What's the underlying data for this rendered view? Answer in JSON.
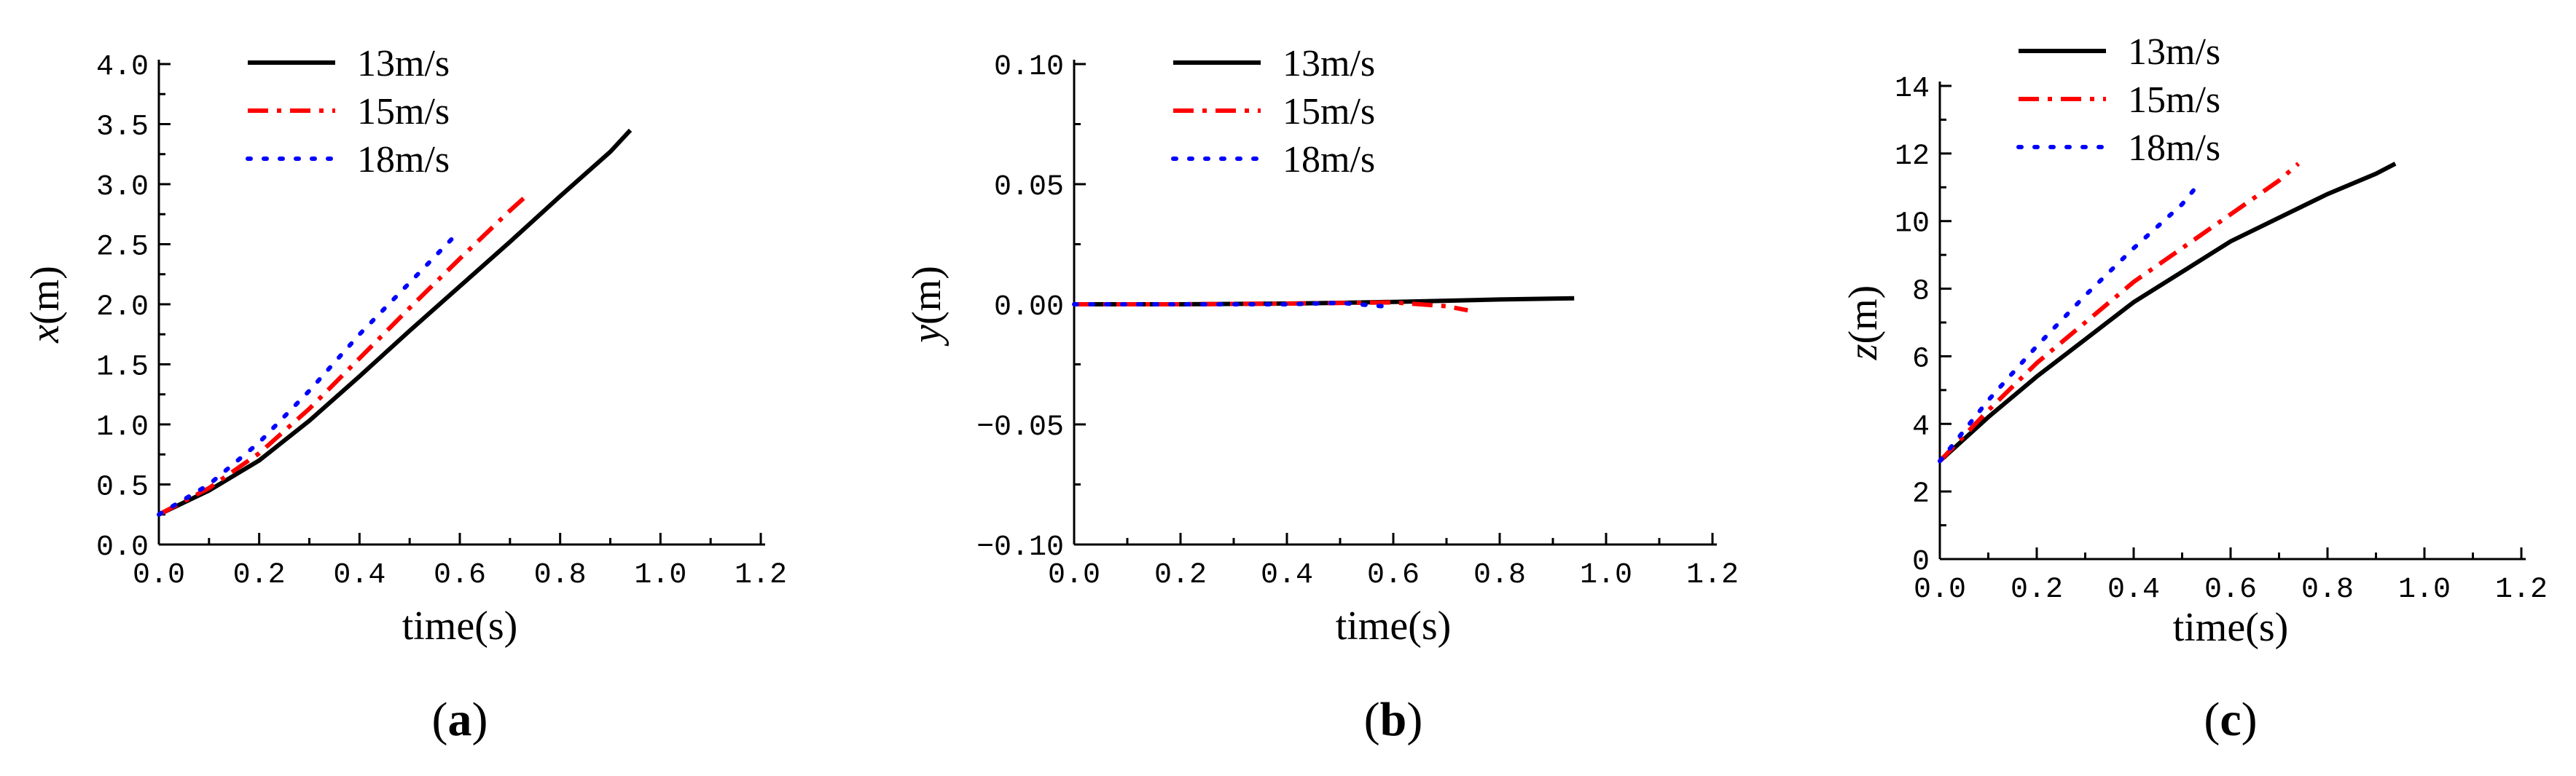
{
  "chart_data": [
    {
      "type": "line",
      "panel_label_open": "(",
      "panel_label": "a",
      "panel_label_close": ")",
      "xlabel": "time(s)",
      "ylabel_var": "x",
      "ylabel_unit": "(m)",
      "xlim": [
        0,
        1.2
      ],
      "ylim": [
        0,
        4.0
      ],
      "xticks": [
        0.0,
        0.2,
        0.4,
        0.6,
        0.8,
        1.0,
        1.2
      ],
      "xtick_labels": [
        "0.0",
        "0.2",
        "0.4",
        "0.6",
        "0.8",
        "1.0",
        "1.2"
      ],
      "yticks": [
        0.0,
        0.5,
        1.0,
        1.5,
        2.0,
        2.5,
        3.0,
        3.5,
        4.0
      ],
      "ytick_labels": [
        "0.0",
        "0.5",
        "1.0",
        "1.5",
        "2.0",
        "2.5",
        "3.0",
        "3.5",
        "4.0"
      ],
      "legend_position": "top-left",
      "series": [
        {
          "name": "13m/s",
          "color": "#000000",
          "style": "solid",
          "x": [
            0,
            0.1,
            0.2,
            0.3,
            0.4,
            0.5,
            0.6,
            0.7,
            0.8,
            0.9,
            0.94
          ],
          "y": [
            0.25,
            0.45,
            0.7,
            1.03,
            1.4,
            1.78,
            2.15,
            2.52,
            2.9,
            3.27,
            3.45
          ]
        },
        {
          "name": "15m/s",
          "color": "#ff0000",
          "style": "dashdot",
          "x": [
            0,
            0.1,
            0.2,
            0.3,
            0.4,
            0.5,
            0.6,
            0.7,
            0.74
          ],
          "y": [
            0.25,
            0.47,
            0.76,
            1.13,
            1.55,
            1.97,
            2.38,
            2.78,
            2.93
          ]
        },
        {
          "name": "18m/s",
          "color": "#0000ff",
          "style": "dotted",
          "x": [
            0,
            0.1,
            0.2,
            0.3,
            0.4,
            0.5,
            0.59
          ],
          "y": [
            0.25,
            0.5,
            0.85,
            1.28,
            1.75,
            2.18,
            2.57
          ]
        }
      ]
    },
    {
      "type": "line",
      "panel_label_open": "(",
      "panel_label": "b",
      "panel_label_close": ")",
      "xlabel": "time(s)",
      "ylabel_var": "y",
      "ylabel_unit": "(m)",
      "xlim": [
        0,
        1.2
      ],
      "ylim": [
        -0.1,
        0.1
      ],
      "xticks": [
        0.0,
        0.2,
        0.4,
        0.6,
        0.8,
        1.0,
        1.2
      ],
      "xtick_labels": [
        "0.0",
        "0.2",
        "0.4",
        "0.6",
        "0.8",
        "1.0",
        "1.2"
      ],
      "yticks": [
        -0.1,
        -0.05,
        0.0,
        0.05,
        0.1
      ],
      "ytick_labels": [
        "−0.10",
        "−0.05",
        "0.00",
        "0.05",
        "0.10"
      ],
      "legend_position": "top-center",
      "series": [
        {
          "name": "13m/s",
          "color": "#000000",
          "style": "solid",
          "x": [
            0,
            0.2,
            0.4,
            0.5,
            0.6,
            0.7,
            0.8,
            0.94
          ],
          "y": [
            0,
            0,
            0.0003,
            0.0006,
            0.001,
            0.0015,
            0.002,
            0.0025
          ]
        },
        {
          "name": "15m/s",
          "color": "#ff0000",
          "style": "dashdot",
          "x": [
            0,
            0.2,
            0.4,
            0.6,
            0.7,
            0.74
          ],
          "y": [
            0,
            0,
            0.0003,
            0.0008,
            -0.0008,
            -0.0025
          ]
        },
        {
          "name": "18m/s",
          "color": "#0000ff",
          "style": "dotted",
          "x": [
            0,
            0.2,
            0.4,
            0.5,
            0.59
          ],
          "y": [
            0,
            0,
            0,
            0.0006,
            -0.001
          ]
        }
      ]
    },
    {
      "type": "line",
      "panel_label_open": "(",
      "panel_label": "c",
      "panel_label_close": ")",
      "xlabel": "time(s)",
      "ylabel_var": "z",
      "ylabel_unit": "(m)",
      "xlim": [
        0,
        1.2
      ],
      "ylim": [
        0,
        14
      ],
      "xticks": [
        0.0,
        0.2,
        0.4,
        0.6,
        0.8,
        1.0,
        1.2
      ],
      "xtick_labels": [
        "0.0",
        "0.2",
        "0.4",
        "0.6",
        "0.8",
        "1.0",
        "1.2"
      ],
      "yticks": [
        0,
        2,
        4,
        6,
        8,
        10,
        12,
        14
      ],
      "ytick_labels": [
        "0",
        "2",
        "4",
        "6",
        "8",
        "10",
        "12",
        "14"
      ],
      "legend_position": "top-left",
      "series": [
        {
          "name": "13m/s",
          "color": "#000000",
          "style": "solid",
          "x": [
            0,
            0.1,
            0.2,
            0.3,
            0.4,
            0.5,
            0.6,
            0.7,
            0.8,
            0.9,
            0.94
          ],
          "y": [
            2.9,
            4.2,
            5.4,
            6.5,
            7.6,
            8.5,
            9.4,
            10.1,
            10.8,
            11.4,
            11.7
          ]
        },
        {
          "name": "15m/s",
          "color": "#ff0000",
          "style": "dashdot",
          "x": [
            0,
            0.1,
            0.2,
            0.3,
            0.4,
            0.5,
            0.6,
            0.7,
            0.74
          ],
          "y": [
            2.9,
            4.4,
            5.8,
            7.0,
            8.2,
            9.2,
            10.2,
            11.2,
            11.7
          ]
        },
        {
          "name": "18m/s",
          "color": "#0000ff",
          "style": "dotted",
          "x": [
            0,
            0.1,
            0.2,
            0.3,
            0.4,
            0.5,
            0.54
          ],
          "y": [
            2.9,
            4.7,
            6.3,
            7.8,
            9.2,
            10.5,
            11.2
          ]
        }
      ]
    }
  ]
}
